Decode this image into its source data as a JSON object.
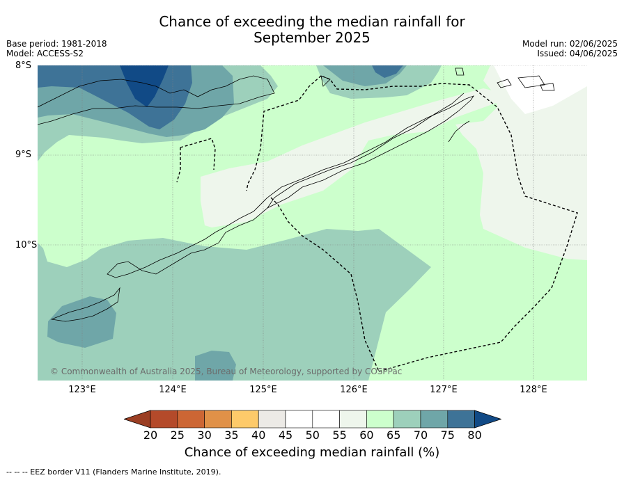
{
  "title_line1": "Chance of exceeding the median rainfall for",
  "title_line2": "September 2025",
  "base_period": "Base period: 1981-2018",
  "model": "Model: ACCESS-S2",
  "model_run": "Model run: 02/06/2025",
  "issued": "Issued: 04/06/2025",
  "lat_labels": [
    "8°S",
    "9°S",
    "10°S"
  ],
  "lon_labels": [
    "123°E",
    "124°E",
    "125°E",
    "126°E",
    "127°E",
    "128°E"
  ],
  "copyright": "© Commonwealth of Australia 2025, Bureau of Meteorology, supported by COSPPac",
  "colorbar": {
    "label": "Chance of exceeding median rainfall (%)",
    "ticks": [
      "20",
      "25",
      "30",
      "35",
      "40",
      "45",
      "50",
      "55",
      "60",
      "65",
      "70",
      "75",
      "80"
    ],
    "colors": [
      "#b44a2a",
      "#cc6634",
      "#e09148",
      "#fdca6a",
      "#eceae6",
      "#ffffff",
      "#ffffff",
      "#eef6ec",
      "#ccffcc",
      "#9dd0bb",
      "#6fa6a8",
      "#3e7397"
    ],
    "under_color": "#9b3e23",
    "over_color": "#114a86"
  },
  "footer": "--  --  -- EEZ border V11 (Flanders Marine Institute, 2019).",
  "map_colors": {
    "c55_60": "#eef6ec",
    "c60_65": "#ccffcc",
    "c65_70": "#9dd0bb",
    "c70_75": "#6fa6a8",
    "c75_80": "#3e7397",
    "c80": "#114a86"
  }
}
